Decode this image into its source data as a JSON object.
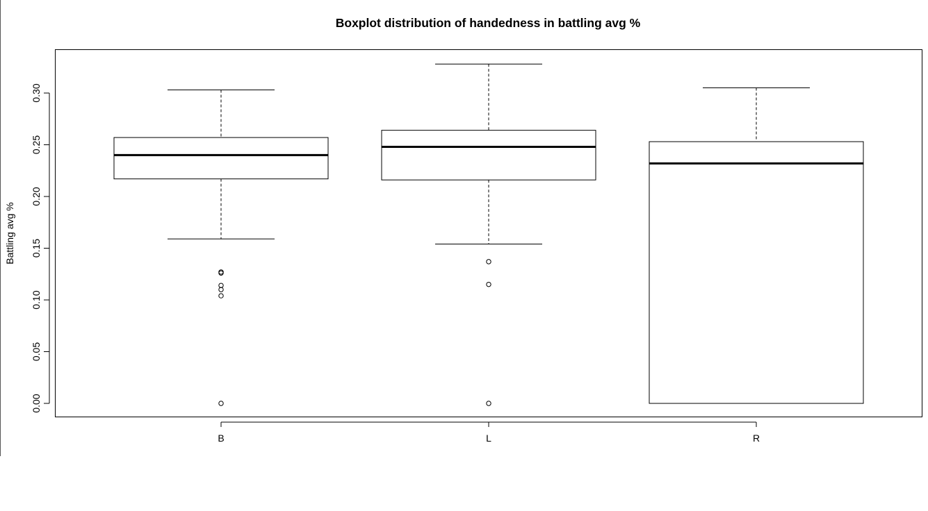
{
  "chart_data": {
    "type": "boxplot",
    "title": "Boxplot distribution of handedness in battling avg %",
    "xlabel": "",
    "ylabel": "Battling avg %",
    "ylim": [
      -0.013,
      0.342
    ],
    "yticks": [
      0.0,
      0.05,
      0.1,
      0.15,
      0.2,
      0.25,
      0.3
    ],
    "ytick_labels": [
      "0.00",
      "0.05",
      "0.10",
      "0.15",
      "0.20",
      "0.25",
      "0.30"
    ],
    "categories": [
      "B",
      "L",
      "R"
    ],
    "grid": false,
    "boxes": [
      {
        "category": "B",
        "whisker_low": 0.159,
        "q1": 0.217,
        "median": 0.24,
        "q3": 0.257,
        "whisker_high": 0.303,
        "outliers": [
          0.127,
          0.126,
          0.114,
          0.11,
          0.104,
          0.0
        ]
      },
      {
        "category": "L",
        "whisker_low": 0.154,
        "q1": 0.216,
        "median": 0.248,
        "q3": 0.264,
        "whisker_high": 0.328,
        "outliers": [
          0.137,
          0.115,
          0.0
        ]
      },
      {
        "category": "R",
        "whisker_low": 0.0,
        "q1": 0.0,
        "median": 0.232,
        "q3": 0.253,
        "whisker_high": 0.305,
        "outliers": []
      }
    ]
  }
}
